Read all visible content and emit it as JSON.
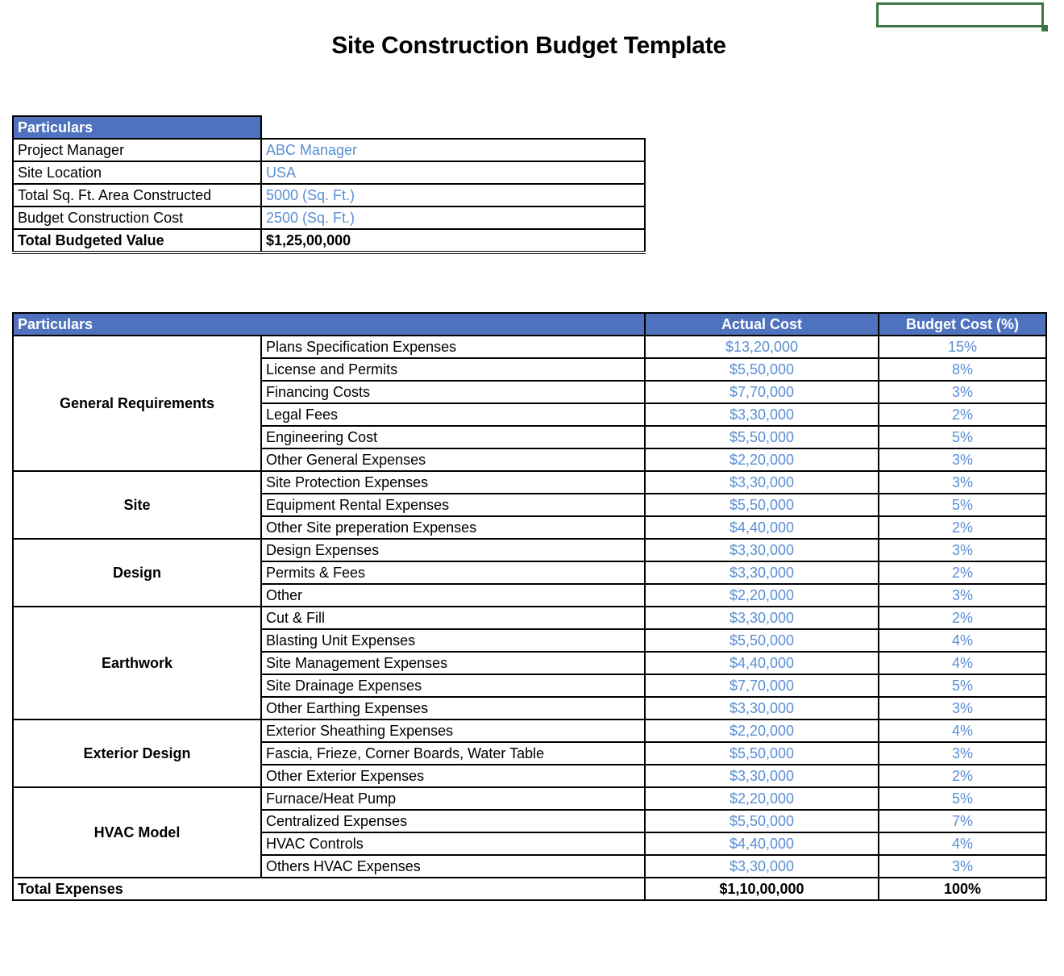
{
  "title": "Site Construction Budget Template",
  "colors": {
    "header_bg": "#4F72BE",
    "value_text": "#5A8FD6",
    "selection": "#3B7543"
  },
  "info_table": {
    "header": "Particulars",
    "rows": [
      {
        "label": "Project Manager",
        "value": "ABC Manager"
      },
      {
        "label": "Site Location",
        "value": "USA"
      },
      {
        "label": "Total Sq. Ft. Area Constructed",
        "value": "5000 (Sq. Ft.)"
      },
      {
        "label": "Budget Construction Cost",
        "value": "2500 (Sq. Ft.)"
      }
    ],
    "total": {
      "label": "Total Budgeted Value",
      "value": "$1,25,00,000"
    }
  },
  "budget_table": {
    "headers": {
      "particulars": "Particulars",
      "actual": "Actual Cost",
      "budget": "Budget Cost (%)"
    },
    "groups": [
      {
        "name": "General Requirements",
        "items": [
          {
            "item": "Plans Specification Expenses",
            "actual": "$13,20,000",
            "budget": "15%"
          },
          {
            "item": "License and Permits",
            "actual": "$5,50,000",
            "budget": "8%"
          },
          {
            "item": "Financing Costs",
            "actual": "$7,70,000",
            "budget": "3%"
          },
          {
            "item": "Legal Fees",
            "actual": "$3,30,000",
            "budget": "2%"
          },
          {
            "item": "Engineering Cost",
            "actual": "$5,50,000",
            "budget": "5%"
          },
          {
            "item": "Other General Expenses",
            "actual": "$2,20,000",
            "budget": "3%"
          }
        ]
      },
      {
        "name": "Site",
        "items": [
          {
            "item": "Site Protection Expenses",
            "actual": "$3,30,000",
            "budget": "3%"
          },
          {
            "item": "Equipment Rental Expenses",
            "actual": "$5,50,000",
            "budget": "5%"
          },
          {
            "item": "Other Site preperation Expenses",
            "actual": "$4,40,000",
            "budget": "2%"
          }
        ]
      },
      {
        "name": "Design",
        "items": [
          {
            "item": "Design Expenses",
            "actual": "$3,30,000",
            "budget": "3%"
          },
          {
            "item": "Permits & Fees",
            "actual": "$3,30,000",
            "budget": "2%"
          },
          {
            "item": "Other",
            "actual": "$2,20,000",
            "budget": "3%"
          }
        ]
      },
      {
        "name": "Earthwork",
        "items": [
          {
            "item": "Cut & Fill",
            "actual": "$3,30,000",
            "budget": "2%"
          },
          {
            "item": "Blasting Unit Expenses",
            "actual": "$5,50,000",
            "budget": "4%"
          },
          {
            "item": "Site Management Expenses",
            "actual": "$4,40,000",
            "budget": "4%"
          },
          {
            "item": "Site Drainage Expenses",
            "actual": "$7,70,000",
            "budget": "5%"
          },
          {
            "item": "Other Earthing Expenses",
            "actual": "$3,30,000",
            "budget": "3%"
          }
        ]
      },
      {
        "name": "Exterior Design",
        "items": [
          {
            "item": "Exterior Sheathing Expenses",
            "actual": "$2,20,000",
            "budget": "4%"
          },
          {
            "item": "Fascia, Frieze, Corner Boards, Water Table",
            "actual": "$5,50,000",
            "budget": "3%"
          },
          {
            "item": "Other Exterior Expenses",
            "actual": "$3,30,000",
            "budget": "2%"
          }
        ]
      },
      {
        "name": "HVAC Model",
        "items": [
          {
            "item": "Furnace/Heat Pump",
            "actual": "$2,20,000",
            "budget": "5%"
          },
          {
            "item": "Centralized Expenses",
            "actual": "$5,50,000",
            "budget": "7%"
          },
          {
            "item": "HVAC Controls",
            "actual": "$4,40,000",
            "budget": "4%"
          },
          {
            "item": "Others HVAC Expenses",
            "actual": "$3,30,000",
            "budget": "3%"
          }
        ]
      }
    ],
    "total": {
      "label": "Total Expenses",
      "actual": "$1,10,00,000",
      "budget": "100%"
    }
  }
}
